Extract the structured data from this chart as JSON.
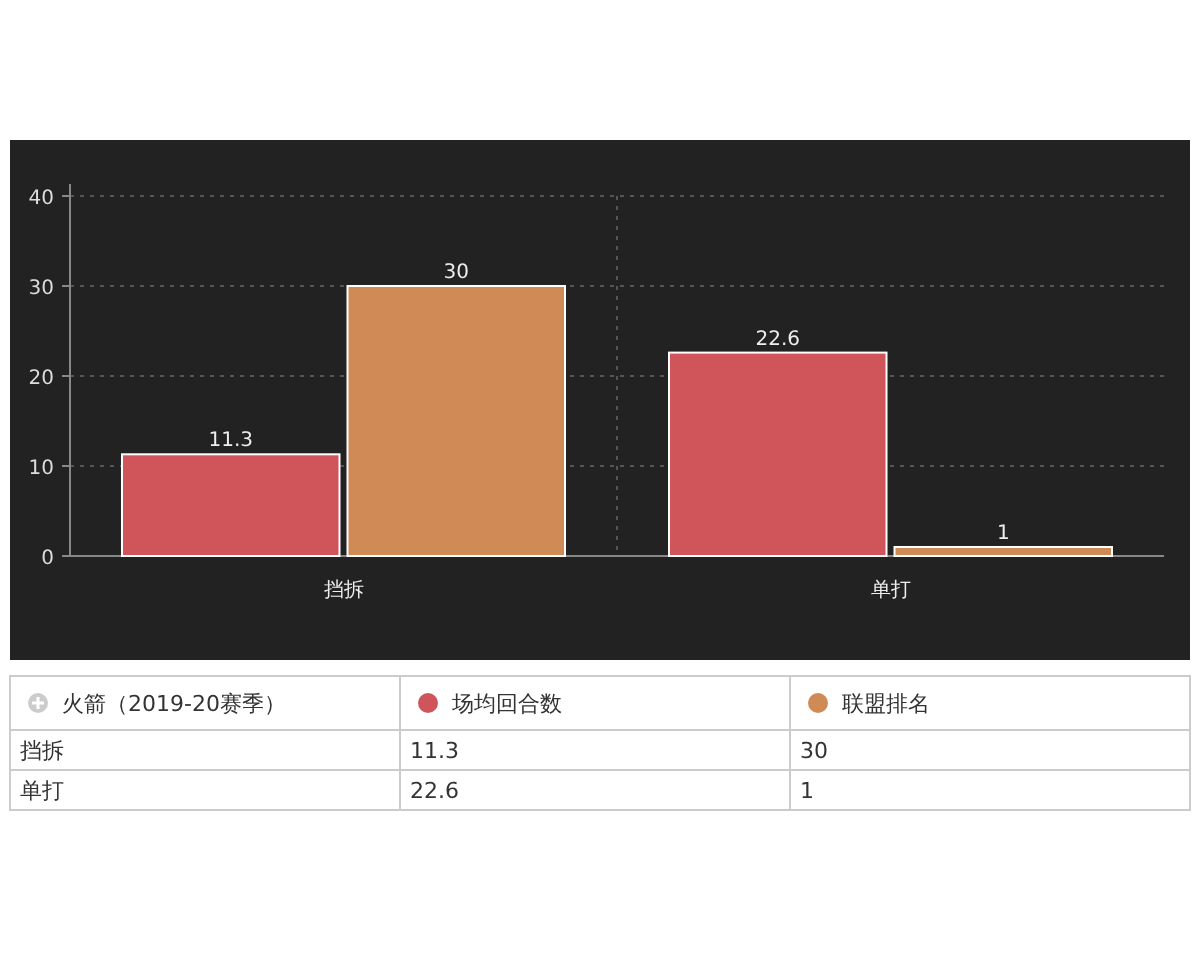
{
  "chart_data": [
    {
      "type": "bar",
      "categories": [
        "挡拆",
        "单打"
      ],
      "legend_title": "火箭（2019-20赛季）",
      "series": [
        {
          "name": "场均回合数",
          "color": "#d0555a",
          "values": [
            11.3,
            22.6
          ]
        },
        {
          "name": "联盟排名",
          "color": "#d08a55",
          "values": [
            30,
            1
          ]
        }
      ],
      "ylim": [
        0,
        40
      ],
      "yticks": [
        0,
        10,
        20,
        30,
        40
      ],
      "grid": true,
      "data_labels": true,
      "legend": "bottom"
    },
    {
      "type": "other",
      "categories": [
        "挡拆",
        "单打"
      ],
      "series": [
        {
          "values": [
            11.3,
            22.6
          ]
        },
        {
          "values": [
            30,
            1
          ]
        }
      ],
      "data_labels": true
    }
  ]
}
